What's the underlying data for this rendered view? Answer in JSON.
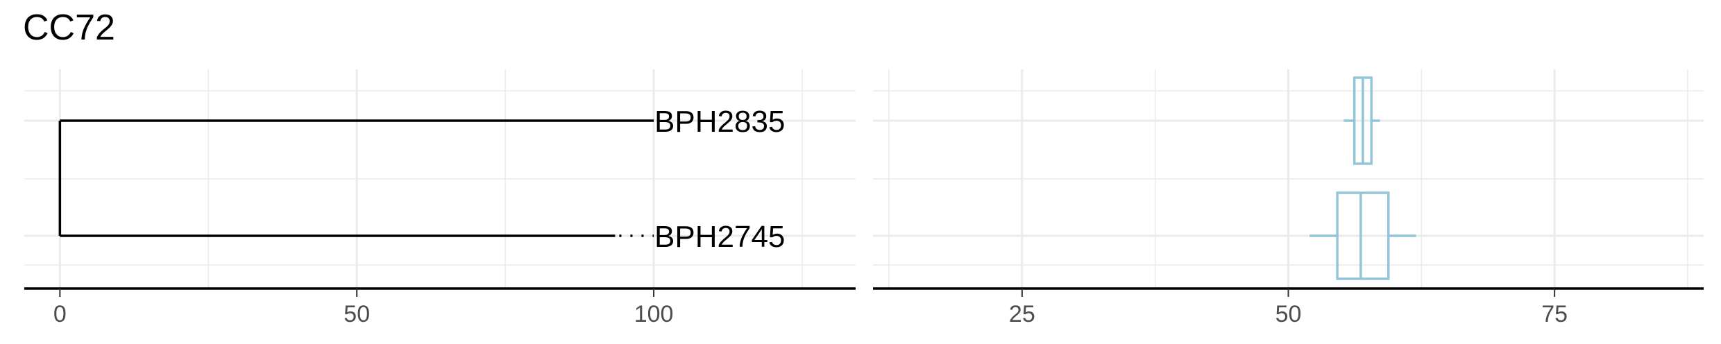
{
  "title": "CC72",
  "chart_data": [
    {
      "type": "tree",
      "xlim": [
        -6,
        134
      ],
      "x_ticks": [
        0,
        50,
        100
      ],
      "grid": true,
      "tips": [
        {
          "label": "BPH2835",
          "branch_length": 100,
          "dotted_to": null
        },
        {
          "label": "BPH2745",
          "branch_length": 93.5,
          "dotted_to": 100
        }
      ]
    },
    {
      "type": "boxplot",
      "xlim": [
        11,
        89
      ],
      "x_ticks": [
        25,
        50,
        75
      ],
      "grid": true,
      "color": "#93c5d9",
      "boxes": [
        {
          "name": "BPH2835",
          "min": 55.2,
          "q1": 56.2,
          "median": 57.0,
          "q3": 57.8,
          "max": 58.6
        },
        {
          "name": "BPH2745",
          "min": 52.0,
          "q1": 54.6,
          "median": 56.8,
          "q3": 59.4,
          "max": 62.0
        }
      ]
    }
  ]
}
